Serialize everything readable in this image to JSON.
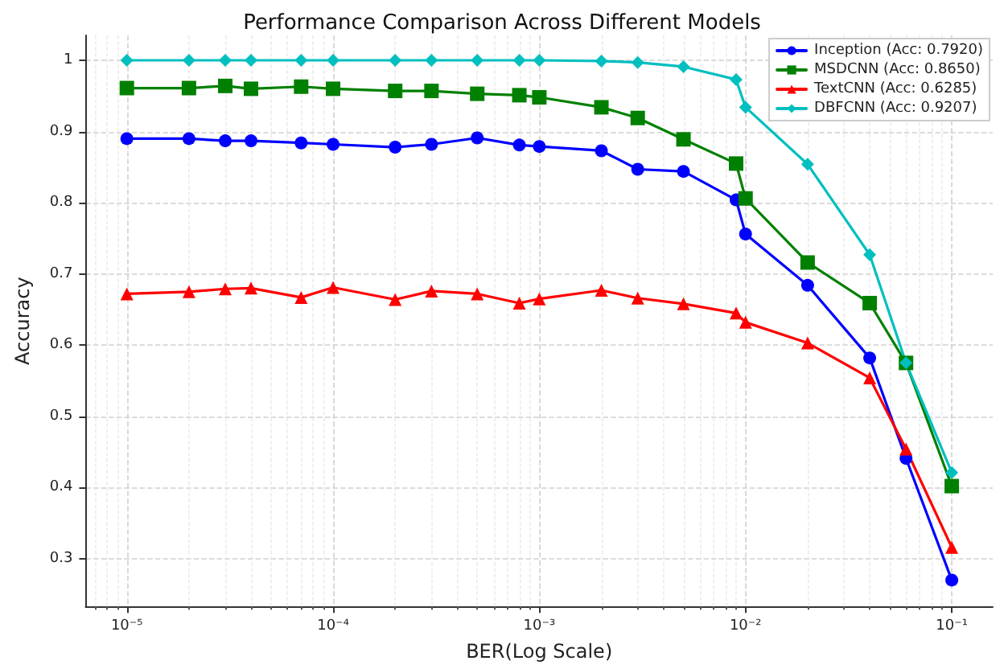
{
  "chart_data": {
    "type": "line",
    "title": "Performance Comparison Across Different Models",
    "xlabel": "BER(Log Scale)",
    "ylabel": "Accuracy",
    "x": [
      1e-05,
      2e-05,
      3e-05,
      4e-05,
      7e-05,
      0.0001,
      0.0002,
      0.0003,
      0.0005,
      0.0008,
      0.001,
      0.002,
      0.003,
      0.005,
      0.009,
      0.01,
      0.02,
      0.04,
      0.06,
      0.1
    ],
    "series": [
      {
        "name": "Inception (Acc: 0.7920)",
        "color": "#0000ff",
        "marker": "circle",
        "values": [
          0.89,
          0.89,
          0.887,
          0.887,
          0.884,
          0.882,
          0.878,
          0.882,
          0.891,
          0.881,
          0.879,
          0.873,
          0.847,
          0.844,
          0.804,
          0.756,
          0.684,
          0.582,
          0.441,
          0.27
        ]
      },
      {
        "name": "MSDCNN (Acc: 0.8650)",
        "color": "#008000",
        "marker": "square",
        "values": [
          0.961,
          0.961,
          0.964,
          0.96,
          0.963,
          0.96,
          0.957,
          0.957,
          0.953,
          0.951,
          0.948,
          0.934,
          0.919,
          0.889,
          0.855,
          0.806,
          0.716,
          0.659,
          0.575,
          0.402
        ]
      },
      {
        "name": "TextCNN (Acc: 0.6285)",
        "color": "#ff0000",
        "marker": "triangle",
        "values": [
          0.672,
          0.675,
          0.679,
          0.68,
          0.667,
          0.681,
          0.664,
          0.676,
          0.672,
          0.659,
          0.665,
          0.677,
          0.666,
          0.658,
          0.645,
          0.632,
          0.603,
          0.554,
          0.454,
          0.316
        ]
      },
      {
        "name": "DBFCNN (Acc: 0.9207)",
        "color": "#00bfbf",
        "marker": "diamond",
        "values": [
          1.0,
          1.0,
          1.0,
          1.0,
          1.0,
          1.0,
          1.0,
          1.0,
          1.0,
          1.0,
          1.0,
          0.999,
          0.997,
          0.991,
          0.973,
          0.934,
          0.854,
          0.727,
          0.575,
          0.421
        ]
      }
    ],
    "log": "x",
    "xlim": [
      6.31e-06,
      0.158
    ],
    "xticks": [
      {
        "value": 1e-05,
        "label": "10⁻⁵"
      },
      {
        "value": 0.0001,
        "label": "10⁻⁴"
      },
      {
        "value": 0.001,
        "label": "10⁻³"
      },
      {
        "value": 0.01,
        "label": "10⁻²"
      },
      {
        "value": 0.1,
        "label": "10⁻¹"
      }
    ],
    "ylim": [
      0.233,
      1.035
    ],
    "yticks": [
      0.3,
      0.4,
      0.5,
      0.6,
      0.7,
      0.8,
      0.9,
      1.0
    ],
    "grid": true,
    "legend": "top right",
    "line_style": "solid"
  }
}
